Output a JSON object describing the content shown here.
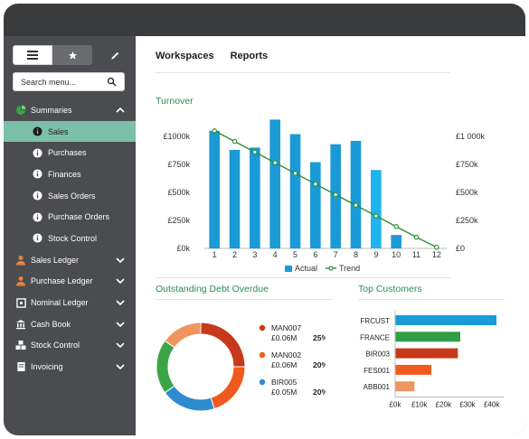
{
  "sidebar": {
    "search_placeholder": "Search menu...",
    "items": [
      {
        "label": "Summaries",
        "icon": "pie-icon",
        "expanded": true
      },
      {
        "label": "Sales",
        "icon": "info-icon",
        "sub": true,
        "active": true
      },
      {
        "label": "Purchases",
        "icon": "info-icon",
        "sub": true
      },
      {
        "label": "Finances",
        "icon": "info-icon",
        "sub": true
      },
      {
        "label": "Sales Orders",
        "icon": "info-icon",
        "sub": true
      },
      {
        "label": "Purchase Orders",
        "icon": "info-icon",
        "sub": true
      },
      {
        "label": "Stock Control",
        "icon": "info-icon",
        "sub": true
      },
      {
        "label": "Sales Ledger",
        "icon": "person-icon"
      },
      {
        "label": "Purchase Ledger",
        "icon": "person-icon"
      },
      {
        "label": "Nominal Ledger",
        "icon": "ledger-icon"
      },
      {
        "label": "Cash Book",
        "icon": "bank-icon"
      },
      {
        "label": "Stock Control",
        "icon": "stock-icon"
      },
      {
        "label": "Invoicing",
        "icon": "invoice-icon"
      }
    ]
  },
  "topnav": {
    "workspaces": "Workspaces",
    "reports": "Reports"
  },
  "colors": {
    "accent_green": "#2e8b57",
    "bar_blue": "#1a9ad6",
    "bar_highlight": "#1eb4ec",
    "trend_green": "#2f8f3a",
    "active_nav": "#7dc0a9",
    "orange_icon": "#e9833a"
  },
  "chart_data": [
    {
      "type": "bar",
      "title": "Turnover",
      "categories": [
        "1",
        "2",
        "3",
        "4",
        "5",
        "6",
        "7",
        "8",
        "9",
        "10",
        "11",
        "12"
      ],
      "series": [
        {
          "name": "Actual",
          "values": [
            1050000,
            880000,
            900000,
            1150000,
            1020000,
            770000,
            930000,
            960000,
            700000,
            120000,
            0,
            0
          ]
        },
        {
          "name": "Trend",
          "type": "line",
          "values": [
            1050000,
            955000,
            860000,
            765000,
            670000,
            575000,
            480000,
            385000,
            290000,
            195000,
            100000,
            10000
          ]
        }
      ],
      "left_ticks": [
        "£0k",
        "£250k",
        "£500k",
        "£750k",
        "£1000k"
      ],
      "right_ticks": [
        "£0",
        "£250k",
        "£500k",
        "£750k",
        "£1 000k"
      ],
      "ylim": [
        0,
        1000000
      ],
      "legend": "bottom"
    },
    {
      "type": "pie",
      "title": "Outstanding Debt Overdue",
      "slices": [
        {
          "name": "MAN007",
          "amount": "£0.06M",
          "pct": "25%",
          "value": 25,
          "color": "#c8381a"
        },
        {
          "name": "MAN002",
          "amount": "£0.06M",
          "pct": "20%",
          "value": 20,
          "color": "#f05a1e"
        },
        {
          "name": "BIR005",
          "amount": "£0.05M",
          "pct": "20%",
          "value": 20,
          "color": "#2f8bd0"
        },
        {
          "name": "",
          "value": 20,
          "color": "#3aa545"
        },
        {
          "name": "",
          "value": 15,
          "color": "#f0955e"
        }
      ]
    },
    {
      "type": "bar",
      "orientation": "horizontal",
      "title": "Top Customers",
      "categories": [
        "FRCUST",
        "FRANCE",
        "BIR003",
        "FES001",
        "ABB001"
      ],
      "values": [
        42000,
        27000,
        26000,
        15000,
        8000
      ],
      "colors": [
        "#1a9ad6",
        "#2f9e44",
        "#c8381a",
        "#f05a1e",
        "#f0955e"
      ],
      "xticks": [
        "£0k",
        "£10k",
        "£20k",
        "£30k",
        "£40k"
      ],
      "xlim": [
        0,
        45000
      ]
    }
  ]
}
